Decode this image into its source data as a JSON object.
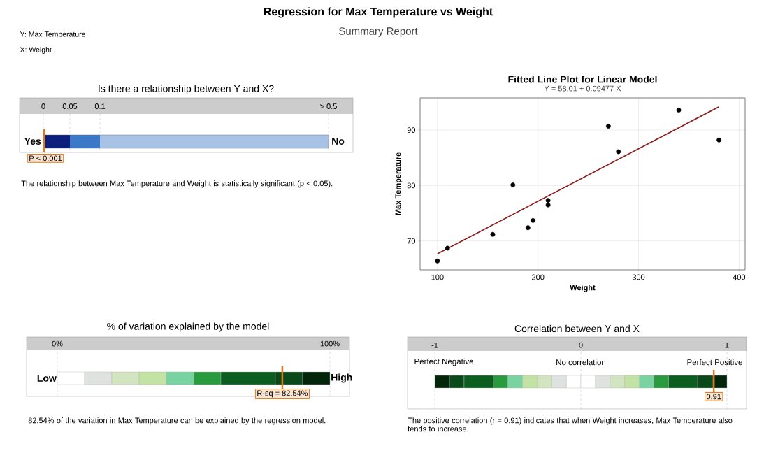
{
  "chart_data": [
    {
      "type": "other",
      "title": "Regression for Max Temperature vs Weight",
      "subtitle": "Summary Report",
      "annotations": [
        "Y: Max Temperature",
        "X: Weight"
      ]
    },
    {
      "type": "other",
      "title": "Is there a relationship between Y and X?",
      "annotations": [
        "0",
        "0.05",
        "0.1",
        "> 0.5",
        "Yes",
        "No",
        "P < 0.001",
        "The relationship between Max Temperature and Weight is statistically significant (p < 0.05)."
      ]
    },
    {
      "type": "scatter",
      "title": "Fitted Line Plot for Linear Model",
      "subtitle": "Y = 58.01 + 0.09477 X",
      "xlabel": "Weight",
      "ylabel": "Max Temperature",
      "xlim": [
        82.7,
        406
      ],
      "ylim": [
        64.8,
        95.8
      ],
      "xticks": [
        100,
        200,
        300,
        400
      ],
      "yticks": [
        70,
        80,
        90
      ],
      "grid": true,
      "series": [
        {
          "type": "scatter",
          "marker": "circle",
          "color": "#000000",
          "x": [
            100,
            110,
            155,
            175,
            190,
            195,
            210,
            210,
            270,
            280,
            340,
            380
          ],
          "values": [
            66.4,
            68.7,
            71.2,
            80.1,
            72.4,
            73.7,
            77.3,
            76.5,
            90.7,
            86.1,
            93.6,
            88.2
          ]
        },
        {
          "type": "line",
          "marker": "none",
          "color": "#8b1a1a",
          "x": [
            100,
            380
          ],
          "values": [
            67.7,
            94.2
          ]
        }
      ]
    },
    {
      "type": "bar",
      "orientation": "horizontal",
      "stacked": true,
      "title": "% of variation explained by the model",
      "categories": [
        null
      ],
      "xlim": [
        0,
        100
      ],
      "xticks": [
        {
          "value": 0,
          "label": "0%"
        },
        {
          "value": 100,
          "label": "100%"
        }
      ],
      "grid": "x",
      "series": [
        {
          "color": "#ffffff",
          "values": [
            10
          ]
        },
        {
          "color": "#dfe3df",
          "values": [
            10
          ]
        },
        {
          "color": "#d2e5c0",
          "values": [
            10
          ]
        },
        {
          "color": "#c3e3a4",
          "values": [
            10
          ]
        },
        {
          "color": "#78d3a0",
          "values": [
            10
          ]
        },
        {
          "color": "#2a9a3e",
          "values": [
            10
          ]
        },
        {
          "color": "#0b5e1f",
          "values": [
            20
          ]
        },
        {
          "color": "#0a4a1a",
          "values": [
            10
          ]
        },
        {
          "color": "#03260b",
          "values": [
            10
          ]
        }
      ],
      "ref_lines": [
        {
          "axis": "x",
          "value": 82.54,
          "label": "R-sq = 82.54%",
          "color": "#e07b1a"
        }
      ],
      "annotations": [
        "Low",
        "High",
        "82.54% of the variation in Max Temperature can be explained by the regression model."
      ]
    },
    {
      "type": "bar",
      "orientation": "horizontal",
      "stacked": true,
      "title": "Correlation between Y and X",
      "categories": [
        null
      ],
      "xlim": [
        -1,
        1
      ],
      "xticks": [
        -1,
        0,
        1
      ],
      "grid": "x",
      "series": [
        {
          "color": "#ffffff",
          "values": [
            -0.1
          ]
        },
        {
          "color": "#dfe3df",
          "values": [
            -0.1
          ]
        },
        {
          "color": "#d2e5c0",
          "values": [
            -0.1
          ]
        },
        {
          "color": "#c3e3a4",
          "values": [
            -0.1
          ]
        },
        {
          "color": "#78d3a0",
          "values": [
            -0.1
          ]
        },
        {
          "color": "#2a9a3e",
          "values": [
            -0.1
          ]
        },
        {
          "color": "#0b5e1f",
          "values": [
            -0.2
          ]
        },
        {
          "color": "#0a4a1a",
          "values": [
            -0.1
          ]
        },
        {
          "color": "#03260b",
          "values": [
            -0.1
          ]
        },
        {
          "color": "#ffffff",
          "values": [
            0.1
          ]
        },
        {
          "color": "#dfe3df",
          "values": [
            0.1
          ]
        },
        {
          "color": "#d2e5c0",
          "values": [
            0.1
          ]
        },
        {
          "color": "#c3e3a4",
          "values": [
            0.1
          ]
        },
        {
          "color": "#78d3a0",
          "values": [
            0.1
          ]
        },
        {
          "color": "#2a9a3e",
          "values": [
            0.1
          ]
        },
        {
          "color": "#0b5e1f",
          "values": [
            0.2
          ]
        },
        {
          "color": "#0a4a1a",
          "values": [
            0.1
          ]
        },
        {
          "color": "#03260b",
          "values": [
            0.1
          ]
        }
      ],
      "ref_lines": [
        {
          "axis": "x",
          "value": 0.91,
          "label": "0.91",
          "color": "#e07b1a"
        }
      ],
      "annotations": [
        "Perfect Negative",
        "No correlation",
        "Perfect Positive",
        "The positive correlation (r = 0.91) indicates that when Weight increases, Max Temperature also tends to increase."
      ]
    }
  ]
}
